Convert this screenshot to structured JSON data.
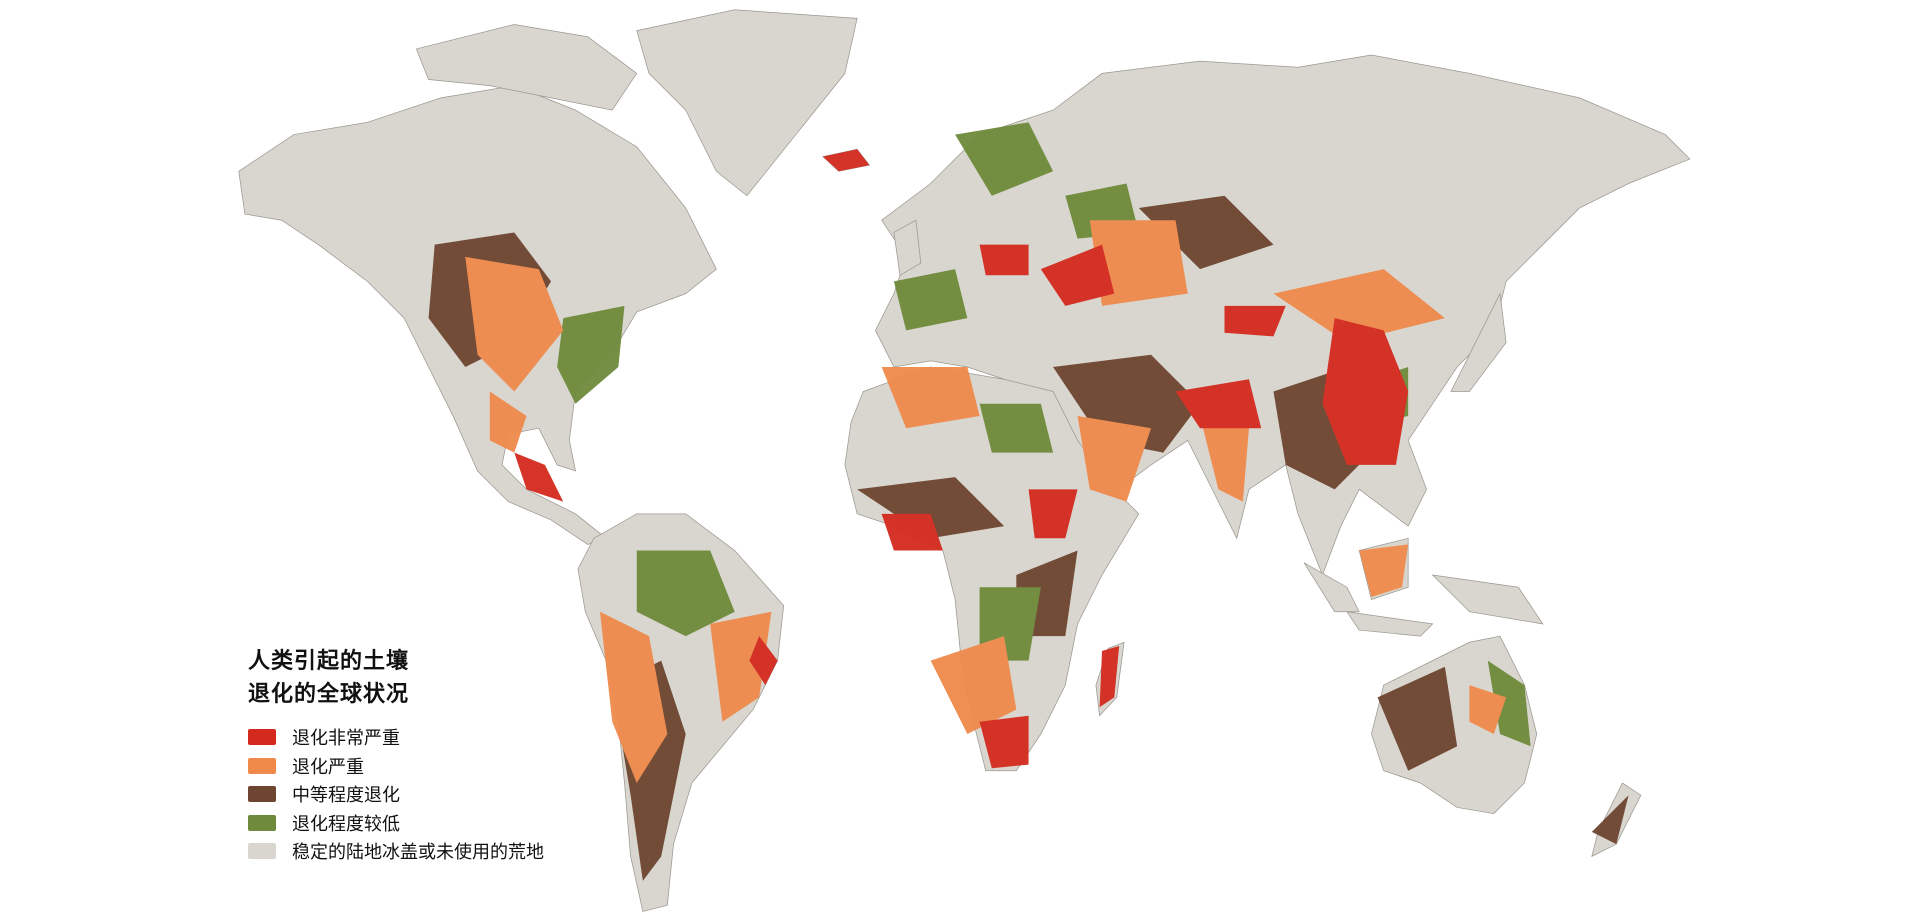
{
  "legend": {
    "title_line1": "人类引起的土壤",
    "title_line2": "退化的全球状况",
    "items": [
      {
        "label": "退化非常严重",
        "color": "#d42a1e"
      },
      {
        "label": "退化严重",
        "color": "#f08a4b"
      },
      {
        "label": "中等程度退化",
        "color": "#6e4530"
      },
      {
        "label": "退化程度较低",
        "color": "#6e8a3a"
      },
      {
        "label": "稳定的陆地冰盖或未使用的荒地",
        "color": "#d8d6cf"
      }
    ]
  }
}
